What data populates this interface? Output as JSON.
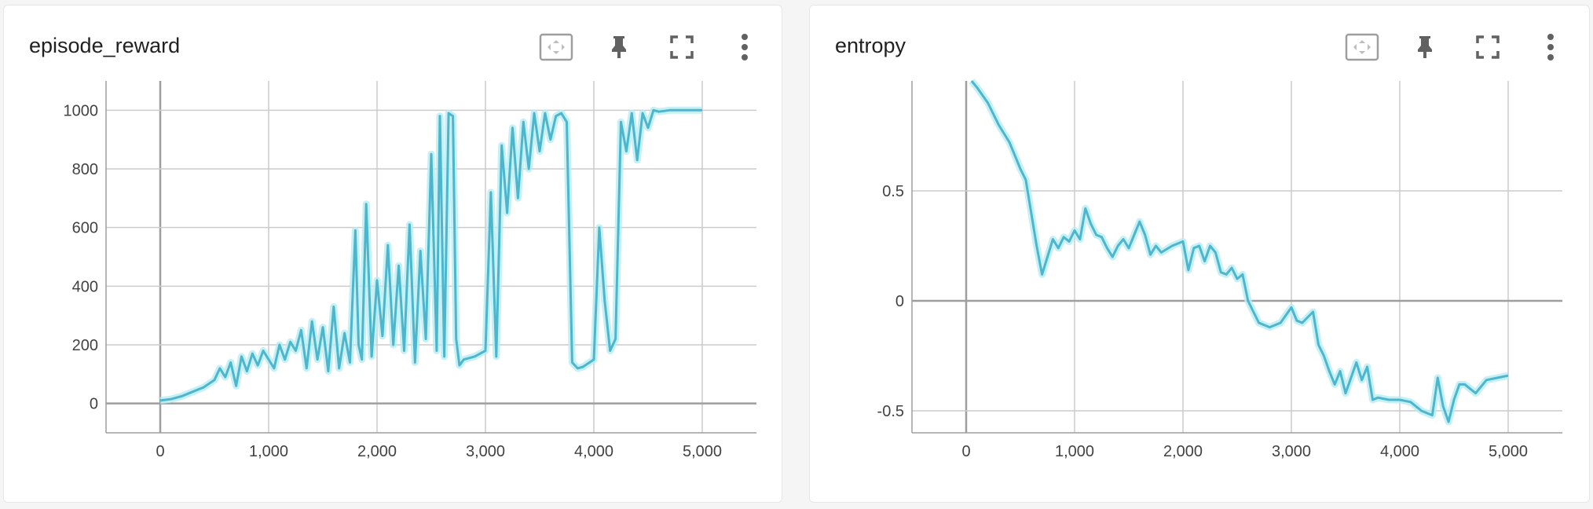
{
  "colors": {
    "accent": "#4db6cc",
    "accent_light": "#b5ecf4",
    "grid": "#cccccc",
    "axis": "#9e9e9e",
    "icon": "#616161"
  },
  "toolbar": {
    "icons": [
      "fit-domain-icon",
      "pin-icon",
      "fullscreen-icon",
      "more-vert-icon"
    ]
  },
  "chart_data": [
    {
      "type": "line",
      "title": "episode_reward",
      "xlim": [
        -500,
        5500
      ],
      "ylim": [
        -100,
        1100
      ],
      "x_ticks": [
        0,
        1000,
        2000,
        3000,
        4000,
        5000
      ],
      "x_tick_labels": [
        "0",
        "1,000",
        "2,000",
        "3,000",
        "4,000",
        "5,000"
      ],
      "y_ticks": [
        0,
        200,
        400,
        600,
        800,
        1000
      ],
      "y_tick_labels": [
        "0",
        "200",
        "400",
        "600",
        "800",
        "1000"
      ],
      "series": [
        {
          "name": "smoothed",
          "x": [
            0,
            100,
            200,
            300,
            400,
            500,
            550,
            600,
            650,
            700,
            750,
            800,
            850,
            900,
            950,
            1000,
            1050,
            1100,
            1150,
            1200,
            1250,
            1300,
            1350,
            1400,
            1450,
            1500,
            1550,
            1600,
            1650,
            1700,
            1750,
            1800,
            1830,
            1860,
            1900,
            1950,
            2000,
            2050,
            2100,
            2150,
            2200,
            2250,
            2300,
            2350,
            2400,
            2450,
            2500,
            2550,
            2580,
            2620,
            2660,
            2700,
            2730,
            2760,
            2800,
            2900,
            3000,
            3050,
            3100,
            3150,
            3200,
            3250,
            3300,
            3350,
            3400,
            3450,
            3500,
            3550,
            3600,
            3650,
            3700,
            3750,
            3800,
            3850,
            3900,
            4000,
            4050,
            4100,
            4150,
            4200,
            4250,
            4300,
            4350,
            4400,
            4450,
            4500,
            4550,
            4600,
            4700,
            4800,
            4900,
            5000
          ],
          "y": [
            10,
            15,
            25,
            40,
            55,
            80,
            120,
            90,
            140,
            60,
            160,
            110,
            170,
            130,
            180,
            150,
            120,
            200,
            150,
            210,
            180,
            250,
            120,
            280,
            150,
            260,
            110,
            330,
            120,
            240,
            140,
            590,
            200,
            150,
            680,
            160,
            420,
            230,
            540,
            200,
            470,
            180,
            610,
            140,
            520,
            220,
            850,
            180,
            980,
            160,
            990,
            980,
            220,
            130,
            150,
            160,
            180,
            720,
            160,
            880,
            650,
            940,
            700,
            960,
            800,
            990,
            860,
            990,
            900,
            980,
            990,
            960,
            140,
            120,
            125,
            150,
            600,
            350,
            180,
            220,
            960,
            860,
            990,
            830,
            990,
            940,
            1000,
            995,
            1000,
            1000,
            1000,
            1000
          ]
        }
      ]
    },
    {
      "type": "line",
      "title": "entropy",
      "xlim": [
        -500,
        5500
      ],
      "ylim": [
        -0.6,
        1.0
      ],
      "x_ticks": [
        0,
        1000,
        2000,
        3000,
        4000,
        5000
      ],
      "x_tick_labels": [
        "0",
        "1,000",
        "2,000",
        "3,000",
        "4,000",
        "5,000"
      ],
      "y_ticks": [
        -0.5,
        0,
        0.5
      ],
      "y_tick_labels": [
        "-0.5",
        "0",
        "0.5"
      ],
      "series": [
        {
          "name": "smoothed",
          "x": [
            50,
            100,
            200,
            300,
            400,
            500,
            550,
            600,
            650,
            700,
            750,
            800,
            850,
            900,
            950,
            1000,
            1050,
            1100,
            1150,
            1200,
            1250,
            1300,
            1350,
            1400,
            1450,
            1500,
            1550,
            1600,
            1650,
            1700,
            1750,
            1800,
            1900,
            2000,
            2050,
            2100,
            2150,
            2200,
            2250,
            2300,
            2350,
            2400,
            2450,
            2500,
            2550,
            2600,
            2650,
            2700,
            2800,
            2900,
            3000,
            3050,
            3100,
            3200,
            3250,
            3300,
            3350,
            3400,
            3450,
            3500,
            3550,
            3600,
            3650,
            3700,
            3750,
            3800,
            3900,
            4000,
            4100,
            4200,
            4300,
            4350,
            4400,
            4450,
            4500,
            4550,
            4600,
            4700,
            4800,
            4900,
            5000
          ],
          "y": [
            1.0,
            0.97,
            0.9,
            0.8,
            0.72,
            0.6,
            0.55,
            0.4,
            0.25,
            0.12,
            0.2,
            0.28,
            0.24,
            0.29,
            0.27,
            0.32,
            0.28,
            0.42,
            0.35,
            0.3,
            0.29,
            0.24,
            0.2,
            0.25,
            0.28,
            0.24,
            0.3,
            0.36,
            0.3,
            0.21,
            0.25,
            0.22,
            0.25,
            0.27,
            0.14,
            0.24,
            0.25,
            0.18,
            0.25,
            0.22,
            0.13,
            0.12,
            0.15,
            0.1,
            0.12,
            0.0,
            -0.05,
            -0.1,
            -0.12,
            -0.1,
            -0.03,
            -0.09,
            -0.1,
            -0.05,
            -0.2,
            -0.25,
            -0.32,
            -0.38,
            -0.32,
            -0.42,
            -0.35,
            -0.28,
            -0.36,
            -0.3,
            -0.45,
            -0.44,
            -0.45,
            -0.45,
            -0.46,
            -0.5,
            -0.52,
            -0.35,
            -0.48,
            -0.55,
            -0.45,
            -0.38,
            -0.38,
            -0.42,
            -0.36,
            -0.35,
            -0.34
          ]
        }
      ]
    }
  ]
}
